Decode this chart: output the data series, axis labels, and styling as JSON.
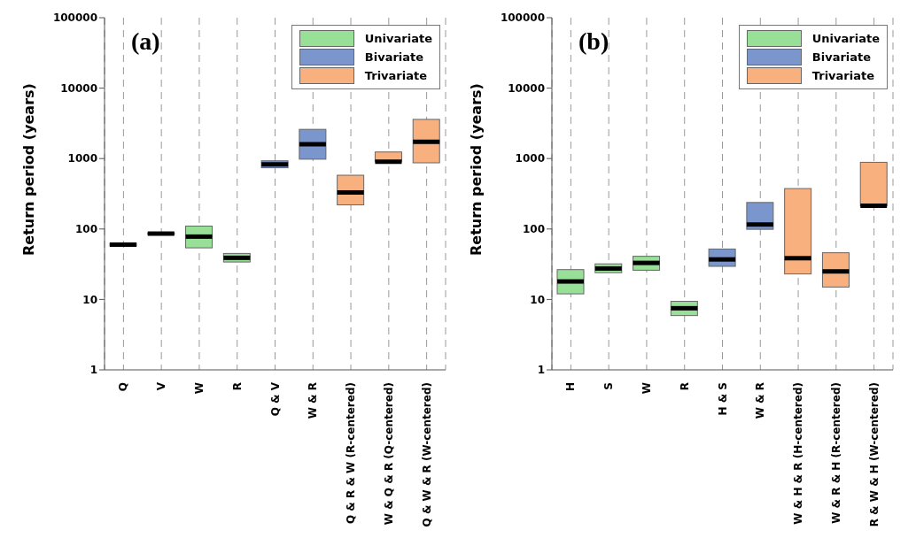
{
  "chart_data": [
    {
      "type": "box",
      "title": "(a)",
      "ylabel": "Return period (years)",
      "log": true,
      "grid": "x",
      "legend": "top right",
      "categories": [
        "Q",
        "V",
        "W",
        "R",
        "Q & V",
        "W & R",
        "Q & R & W (R-centered)",
        "W & Q & R (Q-centered)",
        "Q & W & R (W-centered)"
      ],
      "ylim": [
        1,
        100000
      ],
      "yticks": [
        1,
        10,
        100,
        1000,
        10000,
        100000
      ],
      "series": [
        {
          "name": "Univariate",
          "color": "#98e098",
          "boxes": [
            {
              "low": 57,
              "q1": 57,
              "median": 60,
              "q3": 63,
              "high": 63
            },
            {
              "low": 84,
              "q1": 84,
              "median": 86,
              "q3": 88,
              "high": 88
            },
            {
              "low": 54,
              "q1": 54,
              "median": 78,
              "q3": 110,
              "high": 110
            },
            {
              "low": 34,
              "q1": 34,
              "median": 39,
              "q3": 45,
              "high": 45
            },
            null,
            null,
            null,
            null,
            null
          ]
        },
        {
          "name": "Bivariate",
          "color": "#7b96cc",
          "boxes": [
            null,
            null,
            null,
            null,
            {
              "low": 740,
              "q1": 740,
              "median": 830,
              "q3": 930,
              "high": 930
            },
            {
              "low": 980,
              "q1": 980,
              "median": 1600,
              "q3": 2600,
              "high": 2600
            },
            null,
            null,
            null
          ]
        },
        {
          "name": "Trivariate",
          "color": "#f9b07f",
          "boxes": [
            null,
            null,
            null,
            null,
            null,
            null,
            {
              "low": 220,
              "q1": 220,
              "median": 330,
              "q3": 580,
              "high": 580
            },
            {
              "low": 900,
              "q1": 900,
              "median": 900,
              "q3": 1240,
              "high": 1240
            },
            {
              "low": 870,
              "q1": 870,
              "median": 1730,
              "q3": 3600,
              "high": 3600
            }
          ]
        }
      ]
    },
    {
      "type": "box",
      "title": "(b)",
      "ylabel": "Return period (years)",
      "log": true,
      "grid": "x",
      "legend": "top right",
      "categories": [
        "H",
        "S",
        "W",
        "R",
        "H & S",
        "W & R",
        "W & H & R (H-centered)",
        "W & R & H (R-centered)",
        "R & W & H (W-centered)"
      ],
      "ylim": [
        1,
        100000
      ],
      "yticks": [
        1,
        10,
        100,
        1000,
        10000,
        100000
      ],
      "series": [
        {
          "name": "Univariate",
          "color": "#98e098",
          "boxes": [
            {
              "low": 12,
              "q1": 12,
              "median": 18,
              "q3": 26.5,
              "high": 26.5
            },
            {
              "low": 24,
              "q1": 24,
              "median": 27.5,
              "q3": 32,
              "high": 32
            },
            {
              "low": 26,
              "q1": 26,
              "median": 33,
              "q3": 41,
              "high": 41
            },
            {
              "low": 5.9,
              "q1": 5.9,
              "median": 7.5,
              "q3": 9.4,
              "high": 9.4
            },
            null,
            null,
            null,
            null,
            null
          ]
        },
        {
          "name": "Bivariate",
          "color": "#7b96cc",
          "boxes": [
            null,
            null,
            null,
            null,
            {
              "low": 29.5,
              "q1": 29.5,
              "median": 37,
              "q3": 52,
              "high": 52
            },
            {
              "low": 99,
              "q1": 99,
              "median": 116,
              "q3": 238,
              "high": 238
            },
            null,
            null,
            null
          ]
        },
        {
          "name": "Trivariate",
          "color": "#f9b07f",
          "boxes": [
            null,
            null,
            null,
            null,
            null,
            null,
            {
              "low": 23,
              "q1": 23,
              "median": 38.5,
              "q3": 375,
              "high": 375
            },
            {
              "low": 15,
              "q1": 15,
              "median": 25,
              "q3": 46,
              "high": 46
            },
            {
              "low": 214,
              "q1": 214,
              "median": 214,
              "q3": 885,
              "high": 885
            }
          ]
        }
      ]
    }
  ]
}
